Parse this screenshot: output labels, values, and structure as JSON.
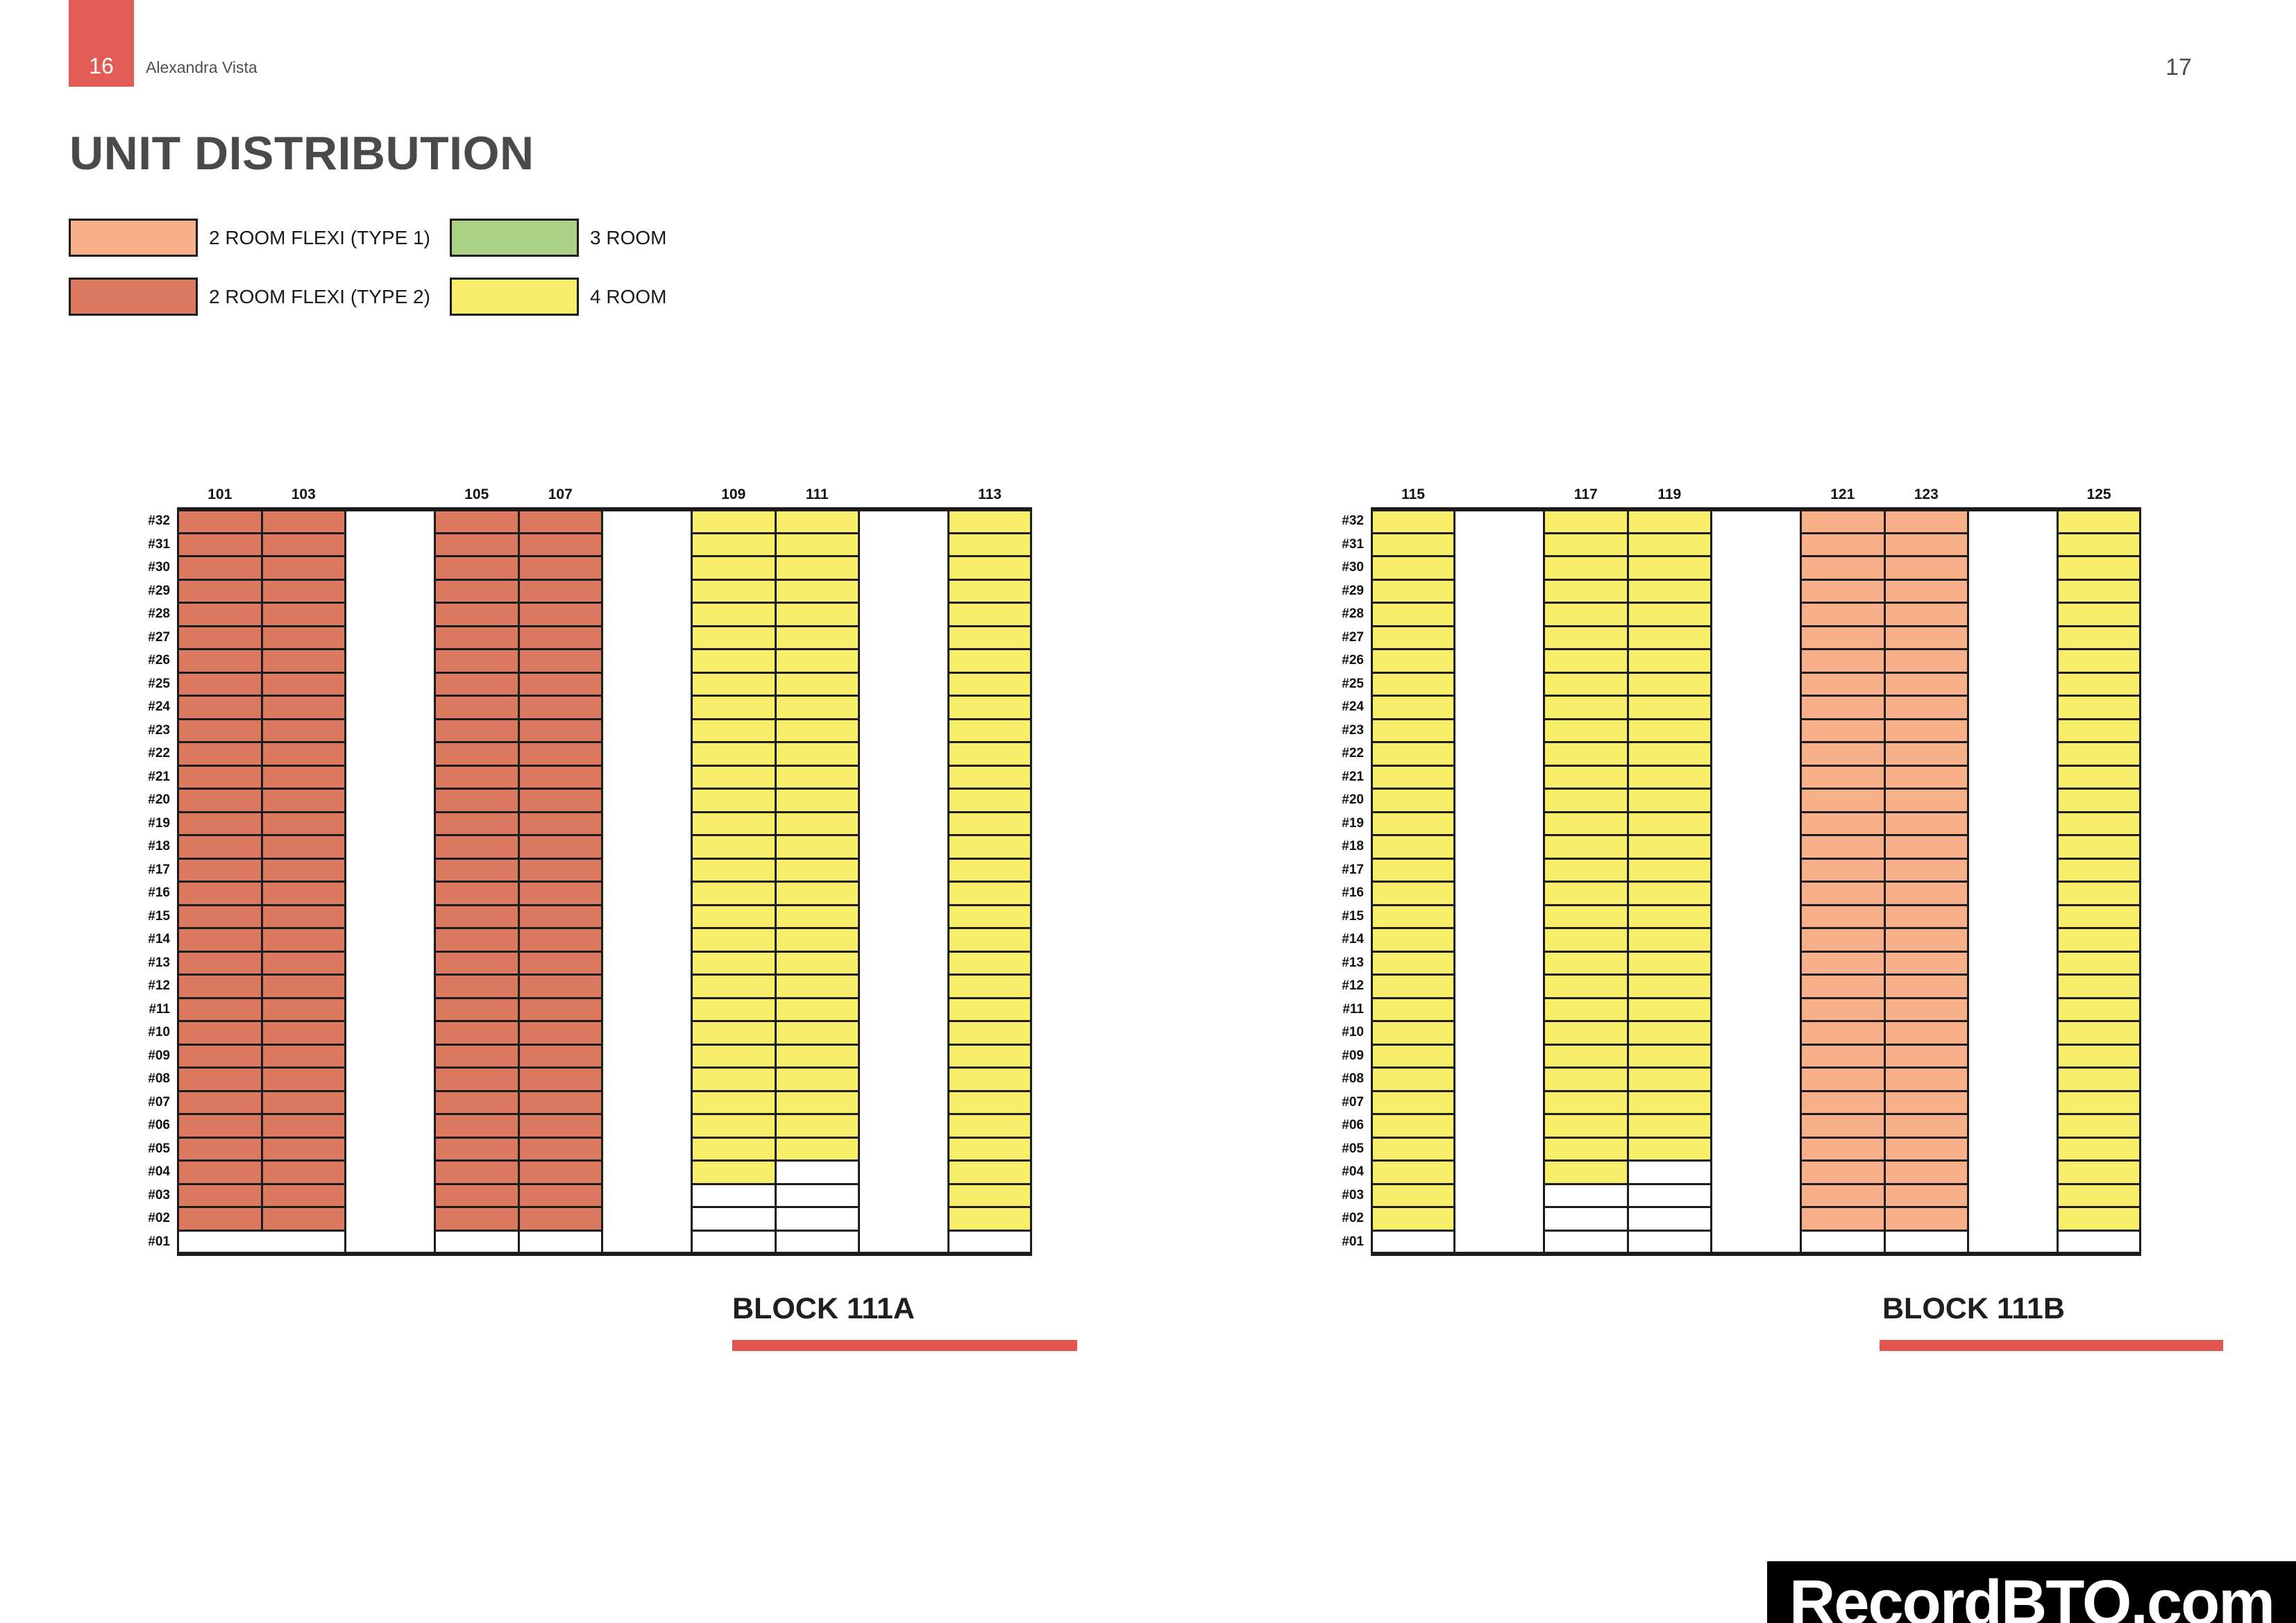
{
  "page": {
    "page_badge": "16",
    "project_name": "Alexandra Vista",
    "page_number": "17",
    "title": "UNIT DISTRIBUTION",
    "watermark": "RecordBTO.com"
  },
  "colors": {
    "accent_red": "#e0564e",
    "badge_red": "#e25c55",
    "unit_2rf1": "#f8b08a",
    "unit_2rf2": "#dc7961",
    "unit_3r": "#acd285",
    "unit_4r": "#f7ef6a",
    "empty": "#ffffff",
    "grid_line": "#1c1c1c"
  },
  "legend": {
    "items": [
      {
        "key": "unit_2rf1",
        "label": "2 ROOM FLEXI (TYPE 1)"
      },
      {
        "key": "unit_3r",
        "label": "3 ROOM"
      },
      {
        "key": "unit_2rf2",
        "label": "2 ROOM FLEXI (TYPE 2)"
      },
      {
        "key": "unit_4r",
        "label": "4 ROOM"
      }
    ]
  },
  "chart_data": [
    {
      "type": "heatmap",
      "block_label": "BLOCK 111A",
      "floors_top_to_bottom": [
        "#32",
        "#31",
        "#30",
        "#29",
        "#28",
        "#27",
        "#26",
        "#25",
        "#24",
        "#23",
        "#22",
        "#21",
        "#20",
        "#19",
        "#18",
        "#17",
        "#16",
        "#15",
        "#14",
        "#13",
        "#12",
        "#11",
        "#10",
        "#09",
        "#08",
        "#07",
        "#06",
        "#05",
        "#04",
        "#03",
        "#02",
        "#01"
      ],
      "top_floor": 32,
      "groups": [
        {
          "merged_ground_floor": true,
          "stacks": [
            {
              "id": "101",
              "unit": "unit_2rf2",
              "lowest_colored_floor": 2
            },
            {
              "id": "103",
              "unit": "unit_2rf2",
              "lowest_colored_floor": 2
            }
          ]
        },
        {
          "merged_ground_floor": false,
          "stacks": [
            {
              "id": "105",
              "unit": "unit_2rf2",
              "lowest_colored_floor": 2
            },
            {
              "id": "107",
              "unit": "unit_2rf2",
              "lowest_colored_floor": 2
            }
          ]
        },
        {
          "merged_ground_floor": false,
          "stacks": [
            {
              "id": "109",
              "unit": "unit_4r",
              "lowest_colored_floor": 4
            },
            {
              "id": "111",
              "unit": "unit_4r",
              "lowest_colored_floor": 5
            }
          ]
        },
        {
          "merged_ground_floor": false,
          "stacks": [
            {
              "id": "113",
              "unit": "unit_4r",
              "lowest_colored_floor": 2
            }
          ]
        }
      ]
    },
    {
      "type": "heatmap",
      "block_label": "BLOCK 111B",
      "floors_top_to_bottom": [
        "#32",
        "#31",
        "#30",
        "#29",
        "#28",
        "#27",
        "#26",
        "#25",
        "#24",
        "#23",
        "#22",
        "#21",
        "#20",
        "#19",
        "#18",
        "#17",
        "#16",
        "#15",
        "#14",
        "#13",
        "#12",
        "#11",
        "#10",
        "#09",
        "#08",
        "#07",
        "#06",
        "#05",
        "#04",
        "#03",
        "#02",
        "#01"
      ],
      "top_floor": 32,
      "groups": [
        {
          "merged_ground_floor": false,
          "stacks": [
            {
              "id": "115",
              "unit": "unit_4r",
              "lowest_colored_floor": 2
            }
          ]
        },
        {
          "merged_ground_floor": false,
          "stacks": [
            {
              "id": "117",
              "unit": "unit_4r",
              "lowest_colored_floor": 4
            },
            {
              "id": "119",
              "unit": "unit_4r",
              "lowest_colored_floor": 5
            }
          ]
        },
        {
          "merged_ground_floor": false,
          "stacks": [
            {
              "id": "121",
              "unit": "unit_2rf1",
              "lowest_colored_floor": 2
            },
            {
              "id": "123",
              "unit": "unit_2rf1",
              "lowest_colored_floor": 2
            }
          ]
        },
        {
          "merged_ground_floor": false,
          "stacks": [
            {
              "id": "125",
              "unit": "unit_4r",
              "lowest_colored_floor": 2
            }
          ]
        }
      ]
    }
  ]
}
